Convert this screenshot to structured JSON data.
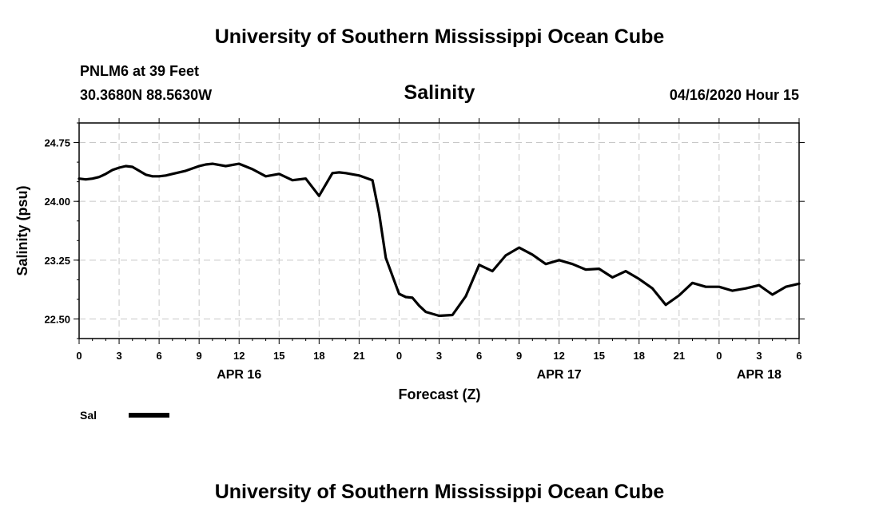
{
  "header": {
    "title": "University of Southern Mississippi Ocean Cube",
    "station": "PNLM6 at 39 Feet",
    "coords": "30.3680N 88.5630W",
    "variable": "Salinity",
    "timestamp": "04/16/2020 Hour 15"
  },
  "footer": {
    "title": "University of Southern Mississippi Ocean Cube"
  },
  "legend": {
    "label": "Sal"
  },
  "chart_data": {
    "type": "line",
    "title": "Salinity",
    "xlabel": "Forecast (Z)",
    "ylabel": "Salinity (psu)",
    "xlim": [
      0,
      54
    ],
    "ylim": [
      22.25,
      25.0
    ],
    "grid": true,
    "x_tick_positions": [
      0,
      3,
      6,
      9,
      12,
      15,
      18,
      21,
      24,
      27,
      30,
      33,
      36,
      39,
      42,
      45,
      48,
      51,
      54
    ],
    "x_tick_labels": [
      "0",
      "3",
      "6",
      "9",
      "12",
      "15",
      "18",
      "21",
      "0",
      "3",
      "6",
      "9",
      "12",
      "15",
      "18",
      "21",
      "0",
      "3",
      "6"
    ],
    "day_labels": [
      {
        "label": "APR 16",
        "x": 12
      },
      {
        "label": "APR 17",
        "x": 36
      },
      {
        "label": "APR 18",
        "x": 51
      }
    ],
    "y_ticks": [
      24.75,
      24.0,
      23.25,
      22.5
    ],
    "y_tick_labels": [
      "24.75",
      "24.00",
      "23.25",
      "22.50"
    ],
    "y_minor_step": 0.25,
    "series": [
      {
        "name": "Sal",
        "x": [
          0,
          0.5,
          1,
          1.5,
          2,
          2.5,
          3,
          3.5,
          4,
          4.5,
          5,
          5.5,
          6,
          6.5,
          7,
          8,
          9,
          9.5,
          10,
          11,
          12,
          13,
          14,
          15,
          16,
          17,
          18,
          19,
          19.5,
          20,
          21,
          22,
          22.5,
          23,
          24,
          24.5,
          25,
          25.5,
          26,
          27,
          28,
          29,
          30,
          31,
          32,
          33,
          34,
          35,
          36,
          37,
          38,
          39,
          40,
          41,
          42,
          43,
          44,
          45,
          46,
          47,
          48,
          49,
          50,
          51,
          52,
          53,
          54
        ],
        "values": [
          24.29,
          24.28,
          24.29,
          24.31,
          24.35,
          24.4,
          24.43,
          24.45,
          24.44,
          24.39,
          24.34,
          24.32,
          24.32,
          24.33,
          24.35,
          24.39,
          24.45,
          24.47,
          24.48,
          24.45,
          24.48,
          24.41,
          24.32,
          24.35,
          24.27,
          24.29,
          24.07,
          24.36,
          24.37,
          24.36,
          24.33,
          24.27,
          23.85,
          23.28,
          22.82,
          22.78,
          22.77,
          22.67,
          22.59,
          22.54,
          22.55,
          22.79,
          23.19,
          23.11,
          23.31,
          23.41,
          23.32,
          23.2,
          23.25,
          23.2,
          23.13,
          23.14,
          23.03,
          23.11,
          23.01,
          22.89,
          22.68,
          22.8,
          22.96,
          22.91,
          22.91,
          22.86,
          22.89,
          22.93,
          22.81,
          22.91,
          22.95
        ]
      }
    ]
  }
}
